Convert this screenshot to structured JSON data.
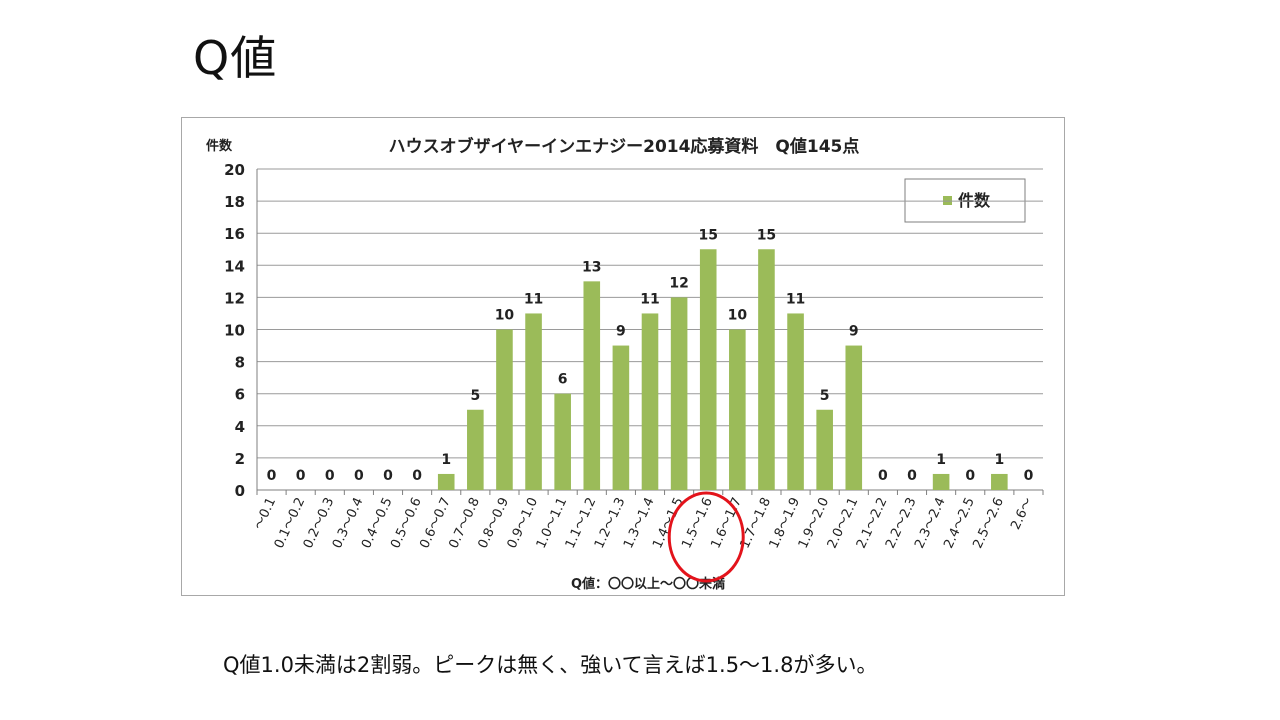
{
  "slide": {
    "title": "Q値",
    "caption": "Q値1.0未満は2割弱。ピークは無く、強いて言えば1.5～1.8が多い。"
  },
  "chart_data": {
    "type": "bar",
    "title": "ハウスオブザイヤーインエナジー2014応募資料　Q値145点",
    "ylabel": "件数",
    "xlabel": "Q値：〇〇以上～〇〇未満",
    "ylim": [
      0,
      20
    ],
    "yticks": [
      0,
      2,
      4,
      6,
      8,
      10,
      12,
      14,
      16,
      18,
      20
    ],
    "grid": true,
    "legend_position": "top-right",
    "categories": [
      "～0.1",
      "0.1～0.2",
      "0.2～0.3",
      "0.3～0.4",
      "0.4～0.5",
      "0.5～0.6",
      "0.6～0.7",
      "0.7～0.8",
      "0.8～0.9",
      "0.9～1.0",
      "1.0～1.1",
      "1.1～1.2",
      "1.2～1.3",
      "1.3～1.4",
      "1.4～1.5",
      "1.5～1.6",
      "1.6～1.7",
      "1.7～1.8",
      "1.8～1.9",
      "1.9～2.0",
      "2.0～2.1",
      "2.1～2.2",
      "2.2～2.3",
      "2.3～2.4",
      "2.4～2.5",
      "2.5～2.6",
      "2.6～"
    ],
    "series": [
      {
        "name": "件数",
        "color": "#9bbb59",
        "values": [
          0,
          0,
          0,
          0,
          0,
          0,
          1,
          5,
          10,
          11,
          6,
          13,
          9,
          11,
          12,
          15,
          10,
          15,
          11,
          5,
          9,
          0,
          0,
          1,
          0,
          1,
          0
        ]
      }
    ],
    "annotation": {
      "type": "circle",
      "color": "#e3131b",
      "category": "1.5～1.6"
    }
  }
}
